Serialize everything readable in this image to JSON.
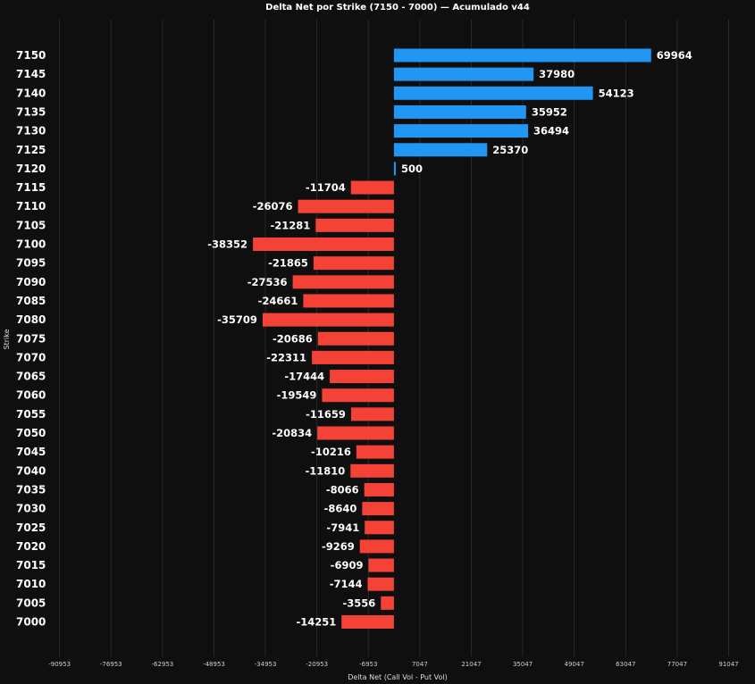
{
  "chart_data": {
    "type": "bar",
    "orientation": "horizontal",
    "title": "Delta Net por Strike (7150 - 7000) — Acumulado v44",
    "xlabel": "Delta Net (Call Vol - Put Vol)",
    "ylabel": "Strike",
    "categories": [
      "7150",
      "7145",
      "7140",
      "7135",
      "7130",
      "7125",
      "7120",
      "7115",
      "7110",
      "7105",
      "7100",
      "7095",
      "7090",
      "7085",
      "7080",
      "7075",
      "7070",
      "7065",
      "7060",
      "7055",
      "7050",
      "7045",
      "7040",
      "7035",
      "7030",
      "7025",
      "7020",
      "7015",
      "7010",
      "7005",
      "7000"
    ],
    "values": [
      69964,
      37980,
      54123,
      35952,
      36494,
      25370,
      500,
      -11704,
      -26076,
      -21281,
      -38352,
      -21865,
      -27536,
      -24661,
      -35709,
      -20686,
      -22311,
      -17444,
      -19549,
      -11659,
      -20834,
      -10216,
      -11810,
      -8066,
      -8640,
      -7941,
      -9269,
      -6909,
      -7144,
      -3556,
      -14251
    ],
    "xticks": [
      -90953,
      -76953,
      -62953,
      -48953,
      -34953,
      -20953,
      -6953,
      7047,
      21047,
      35047,
      49047,
      63047,
      77047,
      91047
    ],
    "xlim": [
      -95000,
      97000
    ],
    "grid": "vertical",
    "colors": {
      "positive": "#2196f3",
      "negative": "#f44336",
      "background": "#0f0f0f",
      "grid": "#2a2a2a",
      "text": "#ffffff"
    }
  }
}
